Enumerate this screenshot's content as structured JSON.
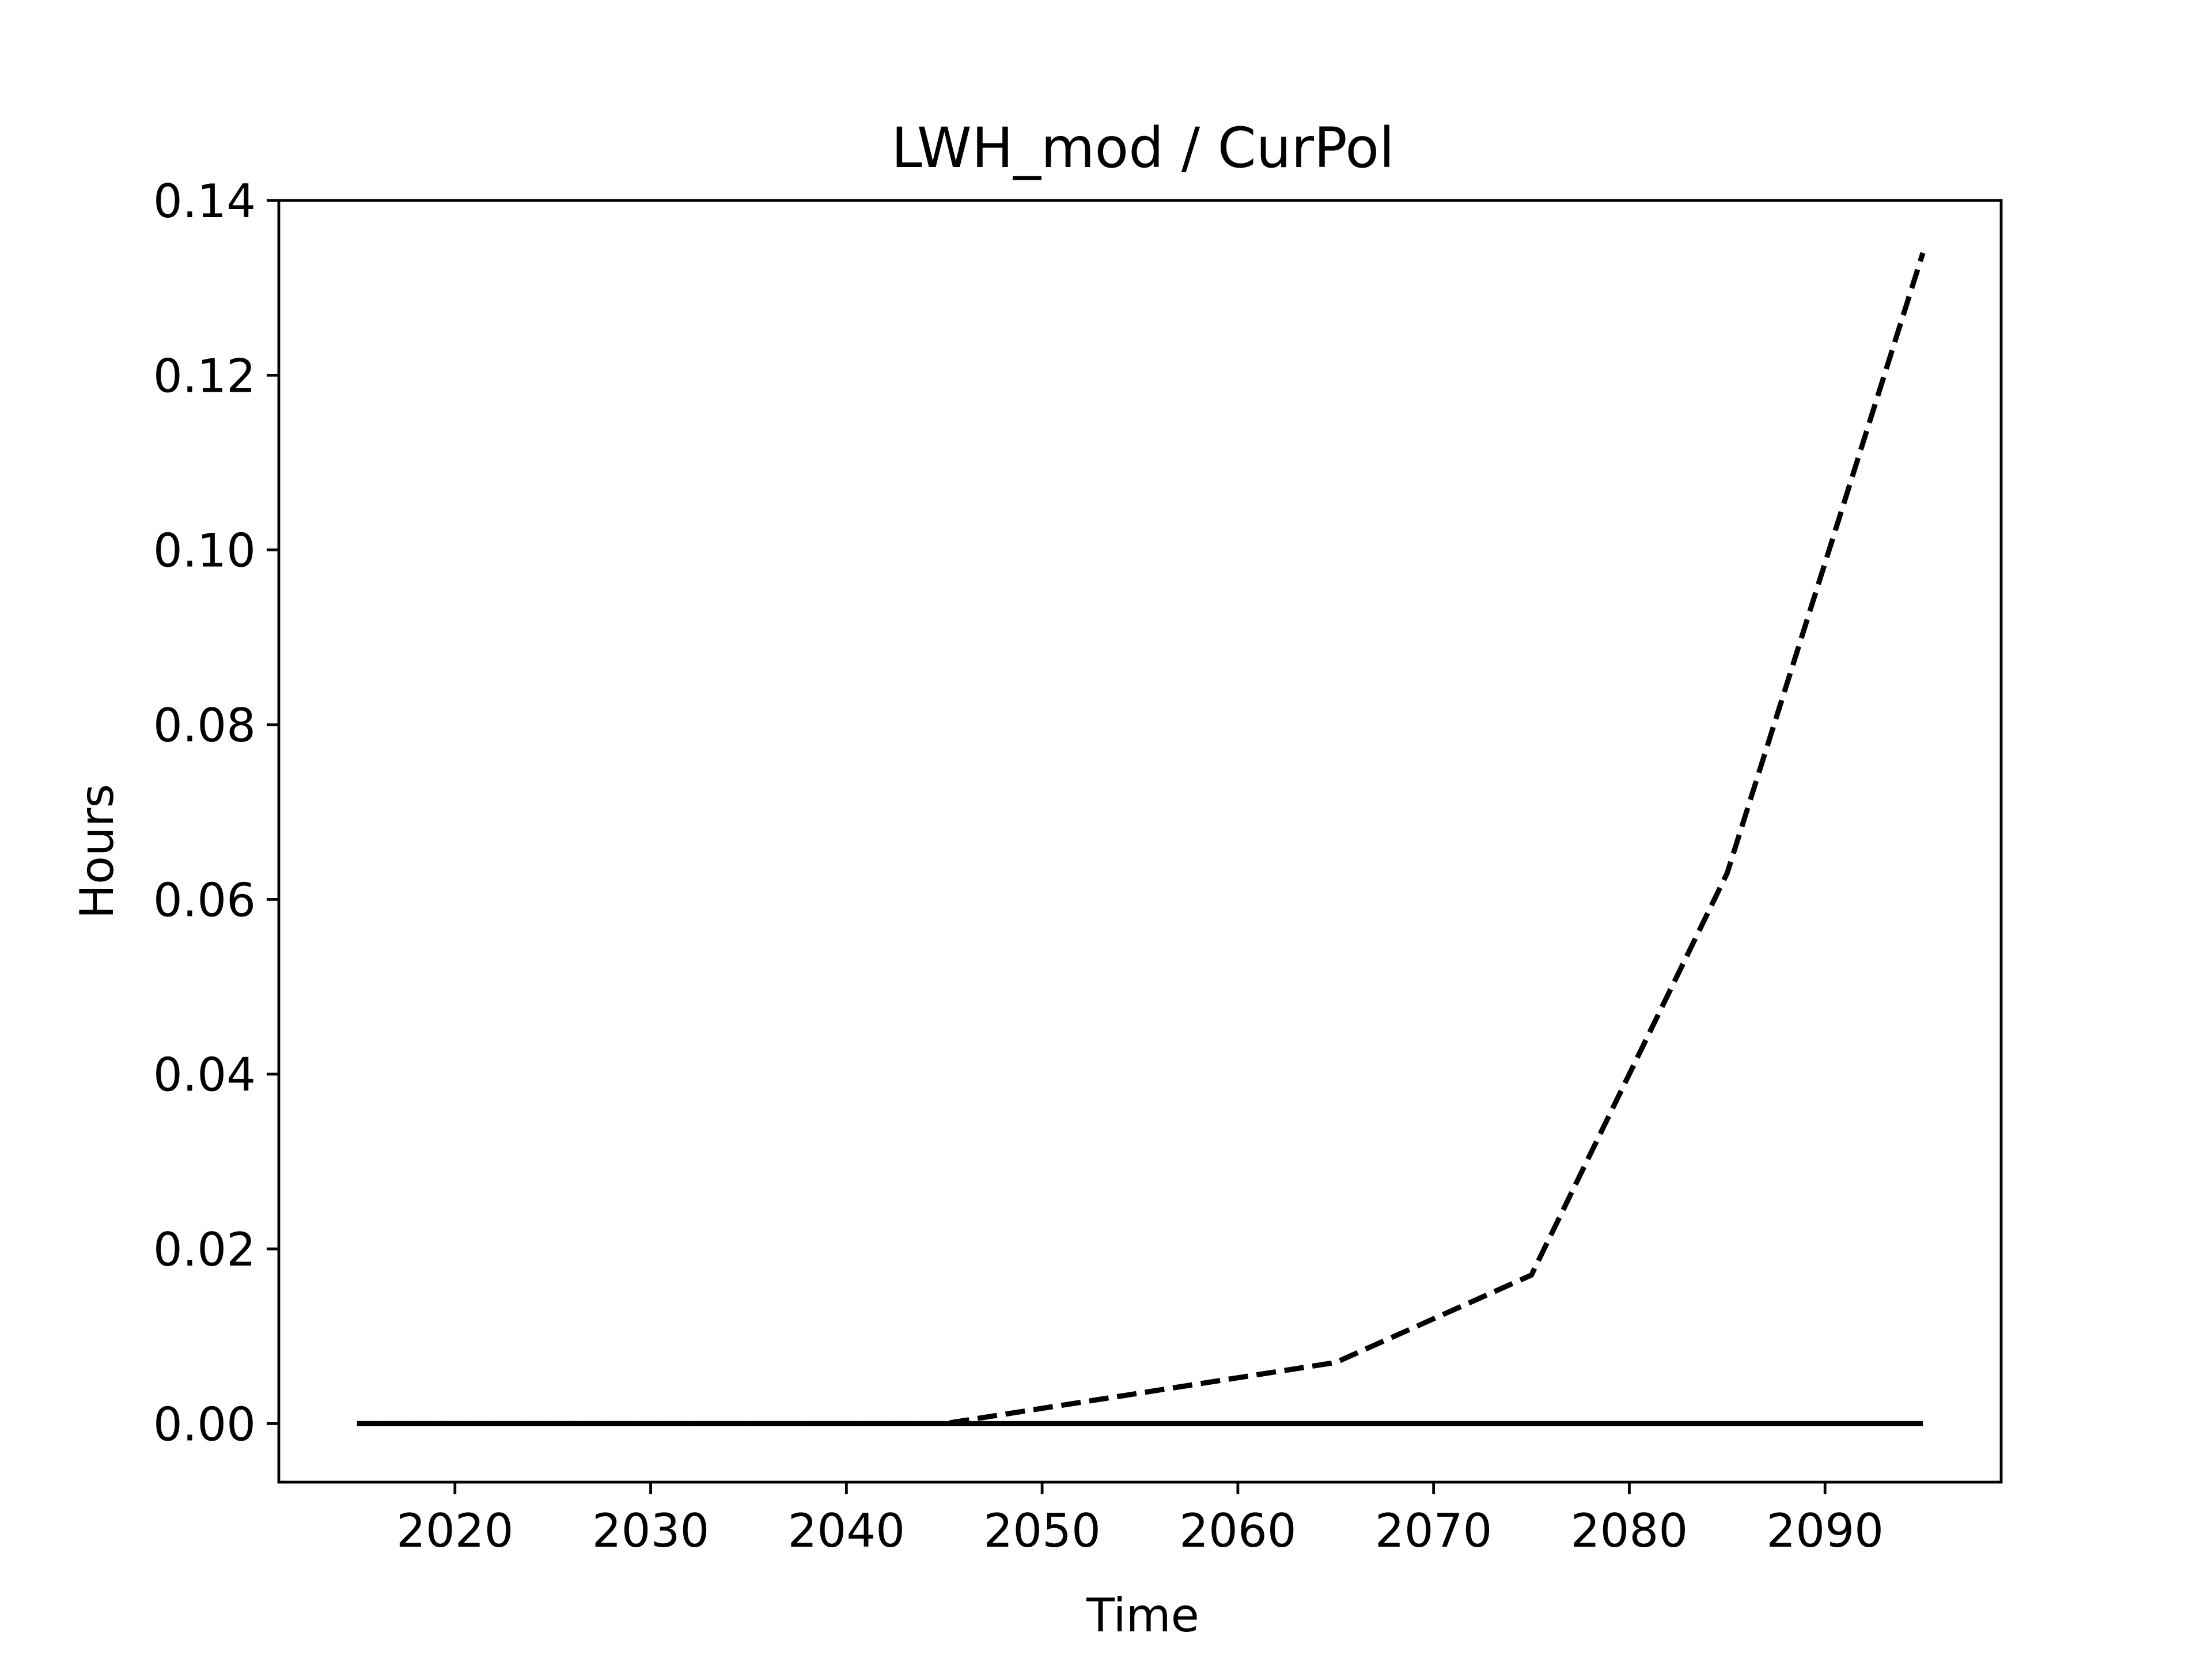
{
  "chart_data": {
    "type": "line",
    "title": "LWH_mod / CurPol",
    "xlabel": "Time",
    "ylabel": "Hours",
    "xlim": [
      2011,
      2099
    ],
    "ylim": [
      -0.0067,
      0.14
    ],
    "xticks": [
      2020,
      2030,
      2040,
      2050,
      2060,
      2070,
      2080,
      2090
    ],
    "xtick_labels": [
      "2020",
      "2030",
      "2040",
      "2050",
      "2060",
      "2070",
      "2080",
      "2090"
    ],
    "yticks": [
      0,
      0.02,
      0.04,
      0.06,
      0.08,
      0.1,
      0.12,
      0.14
    ],
    "ytick_labels": [
      "0.00",
      "0.02",
      "0.04",
      "0.06",
      "0.08",
      "0.10",
      "0.12",
      "0.14"
    ],
    "grid": false,
    "x": [
      2015,
      2025,
      2035,
      2045,
      2055,
      2065,
      2075,
      2085,
      2095
    ],
    "series": [
      {
        "style": "dashed",
        "color": "#000000",
        "values": [
          0,
          0,
          0,
          0,
          0.0035,
          0.007,
          0.017,
          0.063,
          0.134
        ]
      },
      {
        "style": "solid",
        "color": "#000000",
        "values": [
          0,
          0,
          0,
          0,
          0,
          0,
          0,
          0,
          0
        ]
      }
    ]
  }
}
